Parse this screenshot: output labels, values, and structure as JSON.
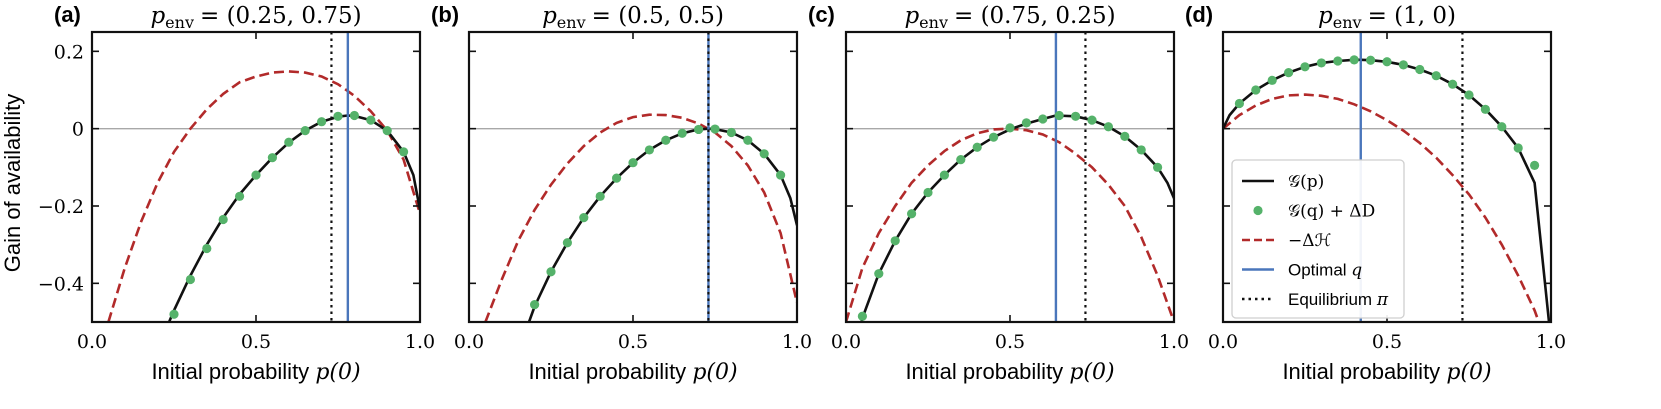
{
  "figure": {
    "colors": {
      "curve": "#111111",
      "dots": "#55b26a",
      "entropy": "#b22a2a",
      "optimal": "#4a76bb",
      "equilibrium": "#111111",
      "zero": "#a8a8a8"
    },
    "ylabel": "Gain of availability",
    "xlabel": {
      "text": "Initial probability",
      "math": "p(0)"
    },
    "legend": [
      {
        "key": "curve",
        "label": "𝒢(p)"
      },
      {
        "key": "dots",
        "label": "𝒢(q) + ΔD"
      },
      {
        "key": "entropy",
        "label": "−Δℋ"
      },
      {
        "key": "optimal",
        "label": "Optimal",
        "math": "q"
      },
      {
        "key": "equilibrium",
        "label": "Equilibrium",
        "math": "π"
      }
    ]
  },
  "chart_data": [
    {
      "type": "line",
      "panel": "(a)",
      "title_math": "p",
      "title_sub": "env",
      "title_rest": "= (0.25, 0.75)",
      "p_env": [
        0.25,
        0.75
      ],
      "xlim": [
        0.0,
        1.0
      ],
      "ylim": [
        -0.5,
        0.25
      ],
      "xticks": [
        0.0,
        0.5,
        1.0
      ],
      "xticklabels": [
        "0.0",
        "0.5",
        "1.0"
      ],
      "yticks": [
        -0.4,
        -0.2,
        0,
        0.2
      ],
      "yticklabels": [
        "−0.4",
        "−0.2",
        "0",
        "0.2"
      ],
      "show_yticklabels": true,
      "equilibrium_pi": 0.73,
      "optimal_q": 0.78,
      "series": [
        {
          "name": "𝒢(p)",
          "key": "curve",
          "x": [
            0.22,
            0.25,
            0.3,
            0.35,
            0.4,
            0.45,
            0.5,
            0.55,
            0.6,
            0.65,
            0.7,
            0.75,
            0.78,
            0.8,
            0.85,
            0.9,
            0.95,
            0.98,
            1.0
          ],
          "y": [
            -0.53,
            -0.47,
            -0.38,
            -0.3,
            -0.23,
            -0.17,
            -0.12,
            -0.075,
            -0.036,
            -0.005,
            0.018,
            0.031,
            0.034,
            0.033,
            0.022,
            -0.005,
            -0.06,
            -0.12,
            -0.21
          ]
        },
        {
          "name": "𝒢(q) + ΔD",
          "key": "dots",
          "x": [
            0.25,
            0.3,
            0.35,
            0.4,
            0.45,
            0.5,
            0.55,
            0.6,
            0.65,
            0.7,
            0.75,
            0.8,
            0.85,
            0.9,
            0.95
          ],
          "y": [
            -0.48,
            -0.39,
            -0.31,
            -0.235,
            -0.175,
            -0.12,
            -0.075,
            -0.035,
            -0.005,
            0.018,
            0.032,
            0.034,
            0.022,
            -0.005,
            -0.06
          ]
        },
        {
          "name": "−Δℋ",
          "key": "entropy",
          "x": [
            0.05,
            0.1,
            0.15,
            0.2,
            0.25,
            0.3,
            0.35,
            0.4,
            0.45,
            0.5,
            0.55,
            0.6,
            0.65,
            0.7,
            0.75,
            0.8,
            0.85,
            0.9,
            0.95,
            1.0
          ],
          "y": [
            -0.5,
            -0.36,
            -0.24,
            -0.14,
            -0.06,
            0.0,
            0.05,
            0.09,
            0.12,
            0.135,
            0.145,
            0.148,
            0.145,
            0.135,
            0.115,
            0.085,
            0.045,
            -0.005,
            -0.08,
            -0.22
          ]
        }
      ]
    },
    {
      "type": "line",
      "panel": "(b)",
      "title_math": "p",
      "title_sub": "env",
      "title_rest": "= (0.5, 0.5)",
      "p_env": [
        0.5,
        0.5
      ],
      "xlim": [
        0.0,
        1.0
      ],
      "ylim": [
        -0.5,
        0.25
      ],
      "xticks": [
        0.0,
        0.5,
        1.0
      ],
      "xticklabels": [
        "0.0",
        "0.5",
        "1.0"
      ],
      "yticks": [
        -0.4,
        -0.2,
        0,
        0.2
      ],
      "yticklabels": [
        "−0.4",
        "−0.2",
        "0",
        "0.2"
      ],
      "show_yticklabels": false,
      "equilibrium_pi": 0.73,
      "optimal_q": 0.73,
      "series": [
        {
          "name": "𝒢(p)",
          "key": "curve",
          "x": [
            0.17,
            0.2,
            0.25,
            0.3,
            0.35,
            0.4,
            0.45,
            0.5,
            0.55,
            0.6,
            0.65,
            0.7,
            0.73,
            0.75,
            0.8,
            0.85,
            0.9,
            0.95,
            0.98,
            1.0
          ],
          "y": [
            -0.53,
            -0.46,
            -0.37,
            -0.295,
            -0.23,
            -0.175,
            -0.128,
            -0.088,
            -0.055,
            -0.03,
            -0.012,
            -0.002,
            0.0,
            -0.001,
            -0.01,
            -0.03,
            -0.065,
            -0.12,
            -0.18,
            -0.25
          ]
        },
        {
          "name": "𝒢(q) + ΔD",
          "key": "dots",
          "x": [
            0.2,
            0.25,
            0.3,
            0.35,
            0.4,
            0.45,
            0.5,
            0.55,
            0.6,
            0.65,
            0.7,
            0.75,
            0.8,
            0.85,
            0.9,
            0.95
          ],
          "y": [
            -0.455,
            -0.37,
            -0.295,
            -0.23,
            -0.175,
            -0.128,
            -0.088,
            -0.055,
            -0.03,
            -0.012,
            -0.002,
            -0.001,
            -0.01,
            -0.03,
            -0.065,
            -0.12
          ]
        },
        {
          "name": "−Δℋ",
          "key": "entropy",
          "x": [
            0.05,
            0.1,
            0.15,
            0.2,
            0.25,
            0.3,
            0.35,
            0.4,
            0.45,
            0.5,
            0.55,
            0.6,
            0.65,
            0.7,
            0.75,
            0.8,
            0.85,
            0.9,
            0.95,
            1.0
          ],
          "y": [
            -0.5,
            -0.39,
            -0.29,
            -0.21,
            -0.145,
            -0.09,
            -0.045,
            -0.01,
            0.015,
            0.03,
            0.036,
            0.035,
            0.028,
            0.013,
            -0.01,
            -0.045,
            -0.095,
            -0.165,
            -0.27,
            -0.45
          ]
        }
      ]
    },
    {
      "type": "line",
      "panel": "(c)",
      "title_math": "p",
      "title_sub": "env",
      "title_rest": "= (0.75, 0.25)",
      "p_env": [
        0.75,
        0.25
      ],
      "xlim": [
        0.0,
        1.0
      ],
      "ylim": [
        -0.5,
        0.25
      ],
      "xticks": [
        0.0,
        0.5,
        1.0
      ],
      "xticklabels": [
        "0.0",
        "0.5",
        "1.0"
      ],
      "yticks": [
        -0.4,
        -0.2,
        0,
        0.2
      ],
      "yticklabels": [
        "−0.4",
        "−0.2",
        "0",
        "0.2"
      ],
      "show_yticklabels": false,
      "equilibrium_pi": 0.73,
      "optimal_q": 0.64,
      "series": [
        {
          "name": "𝒢(p)",
          "key": "curve",
          "x": [
            0.04,
            0.05,
            0.1,
            0.15,
            0.2,
            0.25,
            0.3,
            0.35,
            0.4,
            0.45,
            0.5,
            0.55,
            0.6,
            0.64,
            0.7,
            0.75,
            0.8,
            0.85,
            0.9,
            0.95,
            0.98,
            1.0
          ],
          "y": [
            -0.53,
            -0.49,
            -0.375,
            -0.29,
            -0.22,
            -0.165,
            -0.12,
            -0.08,
            -0.048,
            -0.022,
            -0.002,
            0.013,
            0.025,
            0.034,
            0.032,
            0.022,
            0.005,
            -0.02,
            -0.055,
            -0.1,
            -0.14,
            -0.18
          ]
        },
        {
          "name": "𝒢(q) + ΔD",
          "key": "dots",
          "x": [
            0.05,
            0.1,
            0.15,
            0.2,
            0.25,
            0.3,
            0.35,
            0.4,
            0.45,
            0.5,
            0.55,
            0.6,
            0.65,
            0.7,
            0.75,
            0.8,
            0.85,
            0.9,
            0.95
          ],
          "y": [
            -0.485,
            -0.375,
            -0.29,
            -0.22,
            -0.165,
            -0.12,
            -0.08,
            -0.048,
            -0.022,
            0.002,
            0.015,
            0.025,
            0.034,
            0.032,
            0.022,
            0.005,
            -0.02,
            -0.055,
            -0.1
          ]
        },
        {
          "name": "−Δℋ",
          "key": "entropy",
          "x": [
            0.0,
            0.05,
            0.1,
            0.15,
            0.2,
            0.25,
            0.3,
            0.35,
            0.4,
            0.45,
            0.5,
            0.55,
            0.6,
            0.65,
            0.7,
            0.75,
            0.8,
            0.85,
            0.9,
            0.95,
            1.0
          ],
          "y": [
            -0.5,
            -0.36,
            -0.27,
            -0.2,
            -0.14,
            -0.095,
            -0.058,
            -0.03,
            -0.012,
            -0.002,
            0.0,
            -0.004,
            -0.015,
            -0.035,
            -0.065,
            -0.1,
            -0.145,
            -0.2,
            -0.28,
            -0.38,
            -0.5
          ]
        }
      ]
    },
    {
      "type": "line",
      "panel": "(d)",
      "title_math": "p",
      "title_sub": "env",
      "title_rest": "= (1, 0)",
      "p_env": [
        1,
        0
      ],
      "xlim": [
        0.0,
        1.0
      ],
      "ylim": [
        -0.5,
        0.25
      ],
      "xticks": [
        0.0,
        0.5,
        1.0
      ],
      "xticklabels": [
        "0.0",
        "0.5",
        "1.0"
      ],
      "yticks": [
        -0.4,
        -0.2,
        0,
        0.2
      ],
      "yticklabels": [
        "−0.4",
        "−0.2",
        "0",
        "0.2"
      ],
      "show_yticklabels": false,
      "equilibrium_pi": 0.73,
      "optimal_q": 0.42,
      "series": [
        {
          "name": "𝒢(p)",
          "key": "curve",
          "x": [
            0.0,
            0.02,
            0.05,
            0.1,
            0.15,
            0.2,
            0.25,
            0.3,
            0.35,
            0.4,
            0.42,
            0.45,
            0.5,
            0.55,
            0.6,
            0.65,
            0.7,
            0.75,
            0.8,
            0.85,
            0.9,
            0.95,
            1.0
          ],
          "y": [
            0.0,
            0.035,
            0.065,
            0.1,
            0.125,
            0.145,
            0.16,
            0.17,
            0.175,
            0.178,
            0.178,
            0.177,
            0.173,
            0.165,
            0.153,
            0.137,
            0.115,
            0.087,
            0.05,
            0.005,
            -0.05,
            -0.14,
            -0.55
          ]
        },
        {
          "name": "𝒢(q) + ΔD",
          "key": "dots",
          "x": [
            0.05,
            0.1,
            0.15,
            0.2,
            0.25,
            0.3,
            0.35,
            0.4,
            0.45,
            0.5,
            0.55,
            0.6,
            0.65,
            0.7,
            0.75,
            0.8,
            0.85,
            0.9,
            0.95
          ],
          "y": [
            0.065,
            0.1,
            0.125,
            0.145,
            0.16,
            0.17,
            0.175,
            0.178,
            0.177,
            0.173,
            0.165,
            0.153,
            0.137,
            0.115,
            0.087,
            0.05,
            0.005,
            -0.05,
            -0.095
          ]
        },
        {
          "name": "−Δℋ",
          "key": "entropy",
          "x": [
            0.0,
            0.05,
            0.1,
            0.15,
            0.2,
            0.25,
            0.3,
            0.35,
            0.4,
            0.45,
            0.5,
            0.55,
            0.6,
            0.65,
            0.7,
            0.75,
            0.8,
            0.85,
            0.9,
            0.95,
            0.98
          ],
          "y": [
            0.0,
            0.035,
            0.06,
            0.077,
            0.086,
            0.088,
            0.085,
            0.077,
            0.063,
            0.045,
            0.022,
            -0.005,
            -0.037,
            -0.075,
            -0.12,
            -0.17,
            -0.23,
            -0.3,
            -0.38,
            -0.47,
            -0.54
          ]
        }
      ]
    }
  ]
}
